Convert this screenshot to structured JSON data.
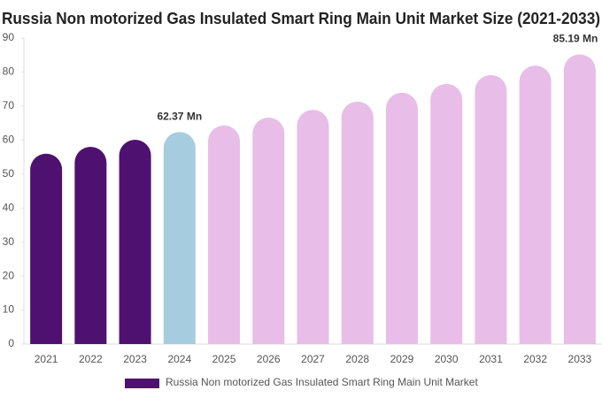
{
  "chart_data": {
    "type": "bar",
    "title": "Russia Non motorized Gas Insulated Smart Ring Main Unit Market Size (2021-2033)",
    "categories": [
      "2021",
      "2022",
      "2023",
      "2024",
      "2025",
      "2026",
      "2027",
      "2028",
      "2029",
      "2030",
      "2031",
      "2032",
      "2033"
    ],
    "series": [
      {
        "name": "Russia Non motorized Gas Insulated Smart Ring Main Unit Market",
        "color": "#4f1170",
        "values": [
          56,
          58,
          60.1,
          62.37,
          64.3,
          66.6,
          68.9,
          71.3,
          73.9,
          76.5,
          79.1,
          81.9,
          85.19
        ],
        "value_labels": [
          null,
          null,
          null,
          "62.37 Mn",
          null,
          null,
          null,
          null,
          null,
          null,
          null,
          null,
          "85.19 Mn"
        ],
        "colors": [
          "#4f1170",
          "#4f1170",
          "#4f1170",
          "#a6cce0",
          "#e8bde8",
          "#e8bde8",
          "#e8bde8",
          "#e8bde8",
          "#e8bde8",
          "#e8bde8",
          "#e8bde8",
          "#e8bde8",
          "#e8bde8"
        ]
      }
    ],
    "ylim": [
      0,
      90
    ],
    "yticks": [
      0,
      10,
      20,
      30,
      40,
      50,
      60,
      70,
      80,
      90
    ],
    "grid": false
  }
}
